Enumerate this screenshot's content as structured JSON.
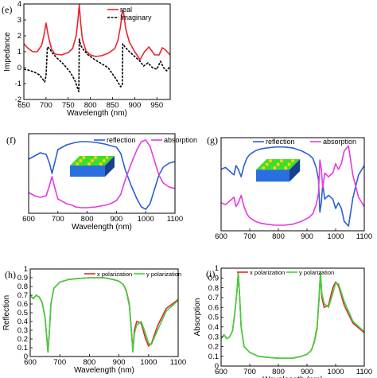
{
  "figure": {
    "panels": [
      "e",
      "f",
      "g",
      "h",
      "i"
    ]
  },
  "colors": {
    "real": "#e8252f",
    "imaginary": "#000000",
    "reflection": "#2b5fd6",
    "absorption": "#e23ce0",
    "x_polarization": "#e8252f",
    "y_polarization": "#3cd33c",
    "inset_base": "#2a6fe0",
    "inset_top": "#3ce028",
    "inset_dots": "#ffd21a"
  },
  "chart_data": [
    {
      "id": "e",
      "label": "(e)",
      "type": "line",
      "xlabel": "Wavelength (nm)",
      "ylabel": "Impedance",
      "xlim": [
        650,
        980
      ],
      "ylim": [
        -2,
        4
      ],
      "xticks": [
        650,
        700,
        750,
        800,
        850,
        900,
        950
      ],
      "yticks": [
        -2,
        -1,
        0,
        1,
        2,
        3,
        4
      ],
      "legend": "top-right",
      "series": [
        {
          "name": "real",
          "style": "solid",
          "x": [
            650,
            660,
            670,
            680,
            690,
            695,
            700,
            705,
            712,
            720,
            735,
            750,
            760,
            768,
            772,
            775,
            778,
            782,
            790,
            800,
            812,
            825,
            840,
            855,
            862,
            868,
            872,
            875,
            880,
            888,
            900,
            912,
            922,
            932,
            945,
            955,
            962,
            968,
            980
          ],
          "y": [
            1.5,
            1.2,
            1.0,
            1.0,
            1.4,
            2.0,
            2.8,
            2.0,
            1.2,
            0.85,
            0.8,
            0.95,
            1.2,
            2.0,
            3.0,
            3.95,
            2.8,
            1.8,
            1.05,
            0.8,
            0.7,
            0.75,
            0.9,
            1.2,
            1.7,
            2.6,
            3.6,
            3.4,
            2.4,
            1.6,
            1.0,
            0.5,
            1.0,
            1.3,
            0.8,
            0.8,
            1.25,
            1.15,
            0.8
          ]
        },
        {
          "name": "Imaginary",
          "style": "dashed",
          "x": [
            650,
            660,
            675,
            685,
            692,
            697,
            700,
            703,
            708,
            715,
            725,
            740,
            755,
            765,
            770,
            774,
            775,
            778,
            785,
            795,
            810,
            825,
            840,
            855,
            862,
            868,
            872,
            873,
            878,
            888,
            900,
            912,
            920,
            930,
            940,
            950,
            958,
            965,
            972,
            980
          ],
          "y": [
            -0.1,
            -0.15,
            -0.3,
            -0.45,
            -0.7,
            -0.9,
            -0.5,
            1.3,
            1.2,
            0.9,
            0.6,
            0.2,
            -0.3,
            -0.8,
            -1.2,
            -1.5,
            1.8,
            1.4,
            1.1,
            0.8,
            0.5,
            0.25,
            0.0,
            -0.6,
            -0.9,
            -1.2,
            -1.1,
            1.5,
            1.3,
            1.0,
            0.7,
            0.4,
            0.1,
            0.3,
            0.0,
            -0.1,
            0.4,
            0.0,
            -0.2,
            0.1
          ]
        }
      ]
    },
    {
      "id": "f",
      "label": "(f)",
      "type": "line",
      "xlabel": "Wavelength (nm)",
      "ylabel": "",
      "xlim": [
        600,
        1100
      ],
      "ylim": [
        0,
        1
      ],
      "xticks": [
        600,
        700,
        800,
        900,
        1000,
        1100
      ],
      "yticks": [],
      "legend": "top-right",
      "series": [
        {
          "name": "reflection",
          "x": [
            600,
            620,
            640,
            660,
            672,
            680,
            688,
            700,
            730,
            750,
            760,
            780,
            800,
            830,
            860,
            880,
            900,
            915,
            930,
            950,
            970,
            985,
            1000,
            1015,
            1030,
            1045,
            1060,
            1080,
            1100
          ],
          "y": [
            0.68,
            0.72,
            0.76,
            0.74,
            0.62,
            0.5,
            0.62,
            0.8,
            0.86,
            0.88,
            0.89,
            0.9,
            0.9,
            0.89,
            0.87,
            0.85,
            0.83,
            0.75,
            0.55,
            0.35,
            0.18,
            0.08,
            0.05,
            0.12,
            0.3,
            0.48,
            0.58,
            0.63,
            0.65
          ]
        },
        {
          "name": "absorption",
          "x": [
            600,
            620,
            640,
            660,
            672,
            680,
            688,
            700,
            730,
            750,
            760,
            780,
            800,
            830,
            860,
            880,
            900,
            915,
            930,
            950,
            970,
            985,
            1000,
            1015,
            1030,
            1045,
            1060,
            1080,
            1100
          ],
          "y": [
            0.26,
            0.22,
            0.2,
            0.22,
            0.36,
            0.46,
            0.34,
            0.18,
            0.12,
            0.1,
            0.08,
            0.07,
            0.07,
            0.08,
            0.1,
            0.12,
            0.16,
            0.24,
            0.42,
            0.62,
            0.8,
            0.9,
            0.92,
            0.84,
            0.66,
            0.48,
            0.38,
            0.33,
            0.31
          ]
        }
      ]
    },
    {
      "id": "g",
      "label": "(g)",
      "type": "line",
      "xlabel": "",
      "ylabel": "",
      "xlim": [
        600,
        1100
      ],
      "ylim": [
        0,
        1
      ],
      "xticks": [
        600,
        700,
        800,
        900,
        1000,
        1100
      ],
      "yticks": [],
      "legend": "top",
      "series": [
        {
          "name": "reflection",
          "x": [
            600,
            615,
            630,
            645,
            652,
            660,
            670,
            680,
            690,
            700,
            720,
            740,
            760,
            790,
            820,
            850,
            880,
            905,
            920,
            932,
            940,
            945,
            950,
            955,
            962,
            975,
            990,
            1000,
            1010,
            1020,
            1030,
            1045,
            1060,
            1080,
            1100
          ],
          "y": [
            0.66,
            0.68,
            0.64,
            0.6,
            0.7,
            0.66,
            0.58,
            0.7,
            0.78,
            0.82,
            0.86,
            0.88,
            0.89,
            0.9,
            0.9,
            0.89,
            0.86,
            0.82,
            0.78,
            0.68,
            0.55,
            0.2,
            0.3,
            0.5,
            0.34,
            0.38,
            0.34,
            0.24,
            0.3,
            0.24,
            0.1,
            0.05,
            0.35,
            0.6,
            0.7
          ]
        },
        {
          "name": "absorption",
          "x": [
            600,
            615,
            630,
            645,
            652,
            660,
            670,
            680,
            690,
            700,
            720,
            740,
            760,
            790,
            820,
            850,
            880,
            905,
            920,
            932,
            940,
            945,
            950,
            955,
            962,
            975,
            990,
            1000,
            1010,
            1020,
            1030,
            1045,
            1060,
            1080,
            1100
          ],
          "y": [
            0.3,
            0.28,
            0.32,
            0.36,
            0.26,
            0.3,
            0.38,
            0.26,
            0.18,
            0.14,
            0.1,
            0.08,
            0.07,
            0.06,
            0.06,
            0.07,
            0.1,
            0.14,
            0.18,
            0.28,
            0.4,
            0.76,
            0.66,
            0.46,
            0.62,
            0.58,
            0.62,
            0.72,
            0.66,
            0.72,
            0.86,
            0.91,
            0.6,
            0.36,
            0.26
          ]
        }
      ]
    },
    {
      "id": "h",
      "label": "(h)",
      "type": "line",
      "xlabel": "Wavelength (nm)",
      "ylabel": "Reflection",
      "xlim": [
        600,
        1100
      ],
      "ylim": [
        0,
        1
      ],
      "xticks": [
        600,
        700,
        800,
        900,
        1000,
        1100
      ],
      "yticks": [
        0,
        0.1,
        0.2,
        0.3,
        0.4,
        0.5,
        0.6,
        0.7,
        0.8,
        0.9,
        1
      ],
      "legend": "top-right",
      "series": [
        {
          "name": "x polarization",
          "x": [
            600,
            610,
            620,
            630,
            640,
            650,
            655,
            660,
            665,
            670,
            680,
            700,
            730,
            760,
            800,
            850,
            880,
            900,
            915,
            925,
            935,
            942,
            947,
            952,
            960,
            975,
            990,
            1000,
            1010,
            1030,
            1060,
            1100
          ],
          "y": [
            0.7,
            0.66,
            0.7,
            0.68,
            0.62,
            0.45,
            0.25,
            0.05,
            0.3,
            0.6,
            0.78,
            0.85,
            0.88,
            0.89,
            0.9,
            0.9,
            0.88,
            0.86,
            0.82,
            0.75,
            0.6,
            0.3,
            0.06,
            0.3,
            0.4,
            0.38,
            0.2,
            0.12,
            0.15,
            0.35,
            0.55,
            0.65
          ]
        },
        {
          "name": "y polarization",
          "x": [
            600,
            610,
            620,
            630,
            640,
            650,
            655,
            660,
            665,
            670,
            680,
            700,
            730,
            760,
            800,
            850,
            880,
            900,
            915,
            925,
            935,
            942,
            947,
            952,
            960,
            975,
            990,
            1000,
            1010,
            1030,
            1060,
            1100
          ],
          "y": [
            0.7,
            0.66,
            0.7,
            0.68,
            0.62,
            0.45,
            0.25,
            0.05,
            0.3,
            0.6,
            0.78,
            0.85,
            0.88,
            0.89,
            0.9,
            0.9,
            0.88,
            0.86,
            0.82,
            0.74,
            0.58,
            0.28,
            0.05,
            0.26,
            0.36,
            0.4,
            0.26,
            0.15,
            0.14,
            0.3,
            0.52,
            0.64
          ]
        }
      ]
    },
    {
      "id": "i",
      "label": "(i)",
      "type": "line",
      "xlabel": "Wavelength (nm)",
      "ylabel": "Absorption",
      "xlim": [
        600,
        1100
      ],
      "ylim": [
        0,
        1
      ],
      "xticks": [
        600,
        700,
        800,
        900,
        1000,
        1100
      ],
      "yticks": [
        0,
        0.1,
        0.2,
        0.3,
        0.4,
        0.5,
        0.6,
        0.7,
        0.8,
        0.9,
        1
      ],
      "legend": "top",
      "series": [
        {
          "name": "x polarization",
          "x": [
            600,
            610,
            620,
            630,
            640,
            648,
            655,
            660,
            665,
            670,
            680,
            700,
            730,
            760,
            800,
            850,
            880,
            900,
            915,
            925,
            935,
            942,
            947,
            952,
            960,
            975,
            990,
            1000,
            1010,
            1030,
            1060,
            1100
          ],
          "y": [
            0.28,
            0.32,
            0.28,
            0.3,
            0.36,
            0.55,
            0.75,
            0.95,
            0.7,
            0.4,
            0.2,
            0.14,
            0.1,
            0.09,
            0.08,
            0.08,
            0.1,
            0.12,
            0.16,
            0.24,
            0.38,
            0.68,
            0.95,
            0.7,
            0.6,
            0.62,
            0.8,
            0.86,
            0.82,
            0.62,
            0.44,
            0.34
          ]
        },
        {
          "name": "y polarization",
          "x": [
            600,
            610,
            620,
            630,
            640,
            648,
            655,
            660,
            665,
            670,
            680,
            700,
            730,
            760,
            800,
            850,
            880,
            900,
            915,
            925,
            935,
            942,
            947,
            952,
            960,
            975,
            990,
            1000,
            1010,
            1030,
            1060,
            1100
          ],
          "y": [
            0.28,
            0.32,
            0.28,
            0.3,
            0.36,
            0.55,
            0.75,
            0.95,
            0.7,
            0.4,
            0.2,
            0.14,
            0.1,
            0.09,
            0.08,
            0.08,
            0.1,
            0.12,
            0.16,
            0.25,
            0.4,
            0.7,
            0.96,
            0.74,
            0.64,
            0.6,
            0.74,
            0.85,
            0.84,
            0.66,
            0.46,
            0.35
          ]
        }
      ]
    }
  ]
}
